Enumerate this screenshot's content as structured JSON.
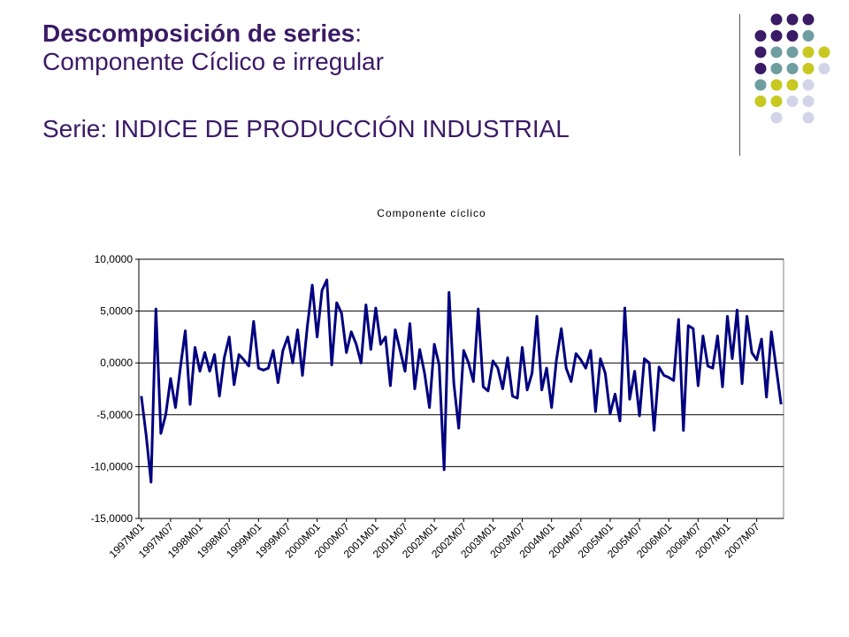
{
  "slide": {
    "title_bold": "Descomposición de series",
    "title_colon": ":",
    "subtitle": "Componente Cíclico e irregular",
    "series_line": "Serie: INDICE DE PRODUCCIÓN INDUSTRIAL"
  },
  "colors": {
    "title": "#3b1a66",
    "series": "#000080",
    "decor_dots": [
      "#3b1a66",
      "#6f9ea0",
      "#c8c820",
      "#d4d4e8"
    ]
  },
  "chart_data": {
    "type": "line",
    "title": "Componente cíclico",
    "ylim": [
      -15,
      10
    ],
    "yticks": [
      10,
      5,
      0,
      -5,
      -10,
      -15
    ],
    "ytick_labels": [
      "10,0000",
      "5,0000",
      "0,0000",
      "-5,0000",
      "-10,0000",
      "-15,0000"
    ],
    "grid": "horizontal",
    "x_tick_labels": [
      "1997M01",
      "1997M07",
      "1998M01",
      "1998M07",
      "1999M01",
      "1999M07",
      "2000M01",
      "2000M07",
      "2001M01",
      "2001M07",
      "2002M01",
      "2002M07",
      "2003M01",
      "2003M07",
      "2004M01",
      "2004M07",
      "2005M01",
      "2005M07",
      "2006M01",
      "2006M07",
      "2007M01",
      "2007M07"
    ],
    "x_start": "1997M01",
    "series": [
      {
        "color": "#000080",
        "values": [
          -3.2,
          -7.0,
          -11.5,
          5.2,
          -6.8,
          -5.0,
          -1.5,
          -4.3,
          -0.5,
          3.1,
          -4.0,
          1.5,
          -0.8,
          1.0,
          -0.8,
          0.8,
          -3.2,
          0.5,
          2.5,
          -2.1,
          0.8,
          0.3,
          -0.3,
          4.0,
          -0.5,
          -0.7,
          -0.5,
          1.2,
          -1.9,
          1.2,
          2.5,
          0.0,
          3.2,
          -1.2,
          3.5,
          7.5,
          2.5,
          7.0,
          8.0,
          -0.2,
          5.8,
          4.8,
          1.0,
          3.0,
          1.8,
          0.0,
          5.6,
          1.3,
          5.3,
          1.8,
          2.5,
          -2.2,
          3.2,
          1.2,
          -0.8,
          3.8,
          -2.5,
          1.3,
          -1.0,
          -4.3,
          1.8,
          -0.2,
          -10.3,
          6.8,
          -2.0,
          -6.3,
          1.2,
          0.0,
          -1.8,
          5.2,
          -2.3,
          -2.7,
          0.2,
          -0.5,
          -2.5,
          0.5,
          -3.2,
          -3.4,
          1.5,
          -2.6,
          -1.0,
          4.5,
          -2.6,
          -0.5,
          -4.3,
          0.3,
          3.3,
          -0.5,
          -1.8,
          0.9,
          0.3,
          -0.5,
          1.2,
          -4.7,
          0.4,
          -1.0,
          -4.9,
          -3.0,
          -5.6,
          5.3,
          -3.5,
          -0.8,
          -5.1,
          0.4,
          0.0,
          -6.5,
          -0.4,
          -1.2,
          -1.4,
          -1.7,
          4.2,
          -6.5,
          3.6,
          3.3,
          -2.2,
          2.6,
          -0.3,
          -0.5,
          2.6,
          -2.3,
          4.5,
          0.4,
          5.1,
          -2.0,
          4.5,
          1.0,
          0.3,
          2.3,
          -3.3,
          3.0,
          -0.5,
          -4.0
        ]
      }
    ]
  }
}
